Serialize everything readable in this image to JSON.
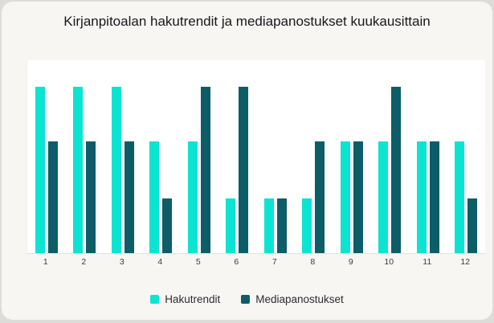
{
  "page": {
    "background": "#dedcd8",
    "card_background": "#f8f6f2"
  },
  "chart_data": {
    "type": "bar",
    "title": "Kirjanpitoalan hakutrendit ja mediapanostukset kuukausittain",
    "categories": [
      "1",
      "2",
      "3",
      "4",
      "5",
      "6",
      "7",
      "8",
      "9",
      "10",
      "11",
      "12"
    ],
    "series": [
      {
        "name": "Hakutrendit",
        "color": "#0BE4D1",
        "values": [
          100,
          100,
          100,
          67,
          67,
          33,
          33,
          33,
          67,
          67,
          67,
          67
        ]
      },
      {
        "name": "Mediapanostukset",
        "color": "#0C5D68",
        "values": [
          67,
          67,
          67,
          33,
          100,
          100,
          33,
          67,
          67,
          100,
          67,
          33
        ]
      }
    ],
    "xlabel": "",
    "ylabel": "",
    "ylim": [
      0,
      116
    ],
    "grid": false,
    "legend_position": "bottom",
    "plot_background": "#ffffff",
    "axis_line_color": "#e2e1dd"
  }
}
